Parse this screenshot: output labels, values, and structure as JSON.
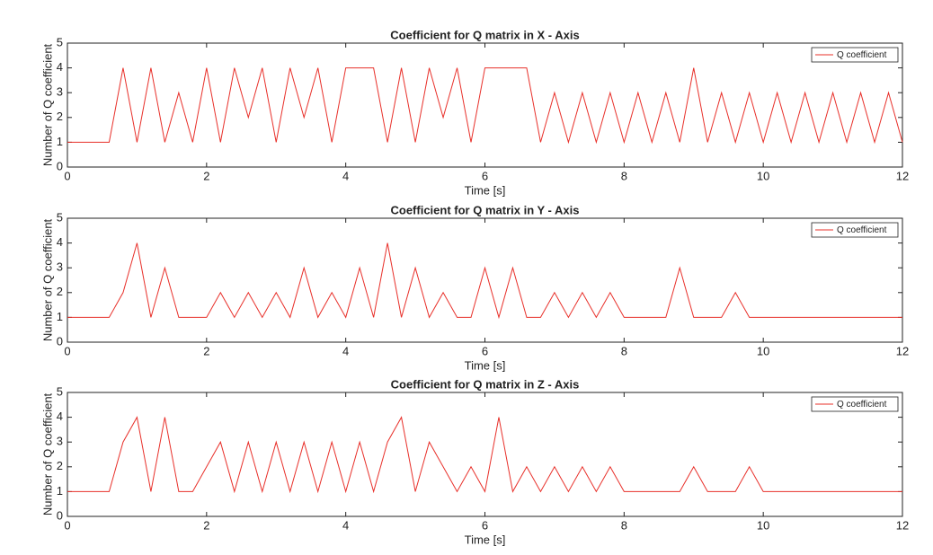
{
  "chart_data": [
    {
      "type": "line",
      "title": "Coefficient for Q matrix in X - Axis",
      "x_label": "Time [s]",
      "y_label": "Number of Q coefficient",
      "x": [
        0,
        0.2,
        0.4,
        0.6,
        0.8,
        1,
        1.2,
        1.4,
        1.6,
        1.8,
        2,
        2.2,
        2.4,
        2.6,
        2.8,
        3,
        3.2,
        3.4,
        3.6,
        3.8,
        4,
        4.2,
        4.4,
        4.6,
        4.8,
        5,
        5.2,
        5.4,
        5.6,
        5.8,
        6,
        6.2,
        6.4,
        6.6,
        6.8,
        7,
        7.2,
        7.4,
        7.6,
        7.8,
        8,
        8.2,
        8.4,
        8.6,
        8.8,
        9,
        9.2,
        9.4,
        9.6,
        9.8,
        10,
        10.2,
        10.4,
        10.6,
        10.8,
        11,
        11.2,
        11.4,
        11.6,
        11.8,
        12
      ],
      "series": [
        {
          "name": "Q coefficient",
          "color": "#e8302a",
          "values": [
            1,
            1,
            1,
            1,
            4,
            1,
            4,
            1,
            3,
            1,
            4,
            1,
            4,
            2,
            4,
            1,
            4,
            2,
            4,
            1,
            4,
            4,
            4,
            1,
            4,
            1,
            4,
            2,
            4,
            1,
            4,
            4,
            4,
            4,
            1,
            3,
            1,
            3,
            1,
            3,
            1,
            3,
            1,
            3,
            1,
            4,
            1,
            3,
            1,
            3,
            1,
            3,
            1,
            3,
            1,
            3,
            1,
            3,
            1,
            3,
            1
          ]
        }
      ],
      "xlim": [
        0,
        12
      ],
      "xticks": [
        0,
        2,
        4,
        6,
        8,
        10,
        12
      ],
      "ylim": [
        0,
        5
      ],
      "yticks": [
        0,
        1,
        2,
        3,
        4,
        5
      ],
      "legend": "upper right"
    },
    {
      "type": "line",
      "title": "Coefficient for Q matrix in Y - Axis",
      "x_label": "Time [s]",
      "y_label": "Number of Q coefficient",
      "x": [
        0,
        0.2,
        0.4,
        0.6,
        0.8,
        1,
        1.2,
        1.4,
        1.6,
        1.8,
        2,
        2.2,
        2.4,
        2.6,
        2.8,
        3,
        3.2,
        3.4,
        3.6,
        3.8,
        4,
        4.2,
        4.4,
        4.6,
        4.8,
        5,
        5.2,
        5.4,
        5.6,
        5.8,
        6,
        6.2,
        6.4,
        6.6,
        6.8,
        7,
        7.2,
        7.4,
        7.6,
        7.8,
        8,
        8.2,
        8.4,
        8.6,
        8.8,
        9,
        9.2,
        9.4,
        9.6,
        9.8,
        10,
        10.2,
        10.4,
        10.6,
        10.8,
        11,
        11.2,
        11.4,
        11.6,
        11.8,
        12
      ],
      "series": [
        {
          "name": "Q coefficient",
          "color": "#e8302a",
          "values": [
            1,
            1,
            1,
            1,
            2,
            4,
            1,
            3,
            1,
            1,
            1,
            2,
            1,
            2,
            1,
            2,
            1,
            3,
            1,
            2,
            1,
            3,
            1,
            4,
            1,
            3,
            1,
            2,
            1,
            1,
            3,
            1,
            3,
            1,
            1,
            2,
            1,
            2,
            1,
            2,
            1,
            1,
            1,
            1,
            3,
            1,
            1,
            1,
            2,
            1,
            1,
            1,
            1,
            1,
            1,
            1,
            1,
            1,
            1,
            1,
            1
          ]
        }
      ],
      "xlim": [
        0,
        12
      ],
      "xticks": [
        0,
        2,
        4,
        6,
        8,
        10,
        12
      ],
      "ylim": [
        0,
        5
      ],
      "yticks": [
        0,
        1,
        2,
        3,
        4,
        5
      ],
      "legend": "upper right"
    },
    {
      "type": "line",
      "title": "Coefficient for Q matrix in Z - Axis",
      "x_label": "Time [s]",
      "y_label": "Number of Q coefficient",
      "x": [
        0,
        0.2,
        0.4,
        0.6,
        0.8,
        1,
        1.2,
        1.4,
        1.6,
        1.8,
        2,
        2.2,
        2.4,
        2.6,
        2.8,
        3,
        3.2,
        3.4,
        3.6,
        3.8,
        4,
        4.2,
        4.4,
        4.6,
        4.8,
        5,
        5.2,
        5.4,
        5.6,
        5.8,
        6,
        6.2,
        6.4,
        6.6,
        6.8,
        7,
        7.2,
        7.4,
        7.6,
        7.8,
        8,
        8.2,
        8.4,
        8.6,
        8.8,
        9,
        9.2,
        9.4,
        9.6,
        9.8,
        10,
        10.2,
        10.4,
        10.6,
        10.8,
        11,
        11.2,
        11.4,
        11.6,
        11.8,
        12
      ],
      "series": [
        {
          "name": "Q coefficient",
          "color": "#e8302a",
          "values": [
            1,
            1,
            1,
            1,
            3,
            4,
            1,
            4,
            1,
            1,
            2,
            3,
            1,
            3,
            1,
            3,
            1,
            3,
            1,
            3,
            1,
            3,
            1,
            3,
            4,
            1,
            3,
            2,
            1,
            2,
            1,
            4,
            1,
            2,
            1,
            2,
            1,
            2,
            1,
            2,
            1,
            1,
            1,
            1,
            1,
            2,
            1,
            1,
            1,
            2,
            1,
            1,
            1,
            1,
            1,
            1,
            1,
            1,
            1,
            1,
            1
          ]
        }
      ],
      "xlim": [
        0,
        12
      ],
      "xticks": [
        0,
        2,
        4,
        6,
        8,
        10,
        12
      ],
      "ylim": [
        0,
        5
      ],
      "yticks": [
        0,
        1,
        2,
        3,
        4,
        5
      ],
      "legend": "upper right"
    }
  ]
}
